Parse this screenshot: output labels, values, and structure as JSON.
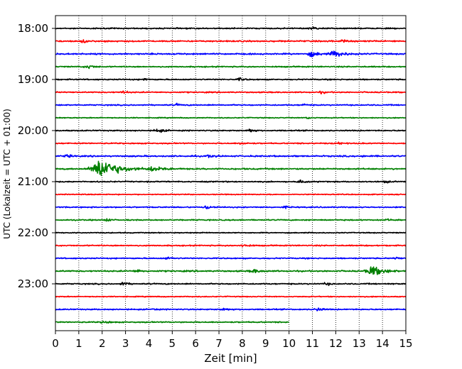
{
  "chart_data": {
    "type": "line",
    "title": "",
    "xlabel": "Zeit  [min]",
    "ylabel": "UTC (Lokalzeit = UTC + 01:00)",
    "xlim": [
      0,
      15
    ],
    "x_ticks": [
      "0",
      "1",
      "2",
      "3",
      "4",
      "5",
      "6",
      "7",
      "8",
      "9",
      "10",
      "11",
      "12",
      "13",
      "14",
      "15"
    ],
    "y_ticks": [
      "18:00",
      "19:00",
      "20:00",
      "21:00",
      "22:00",
      "23:00"
    ],
    "grid_x": true,
    "grid_style": "dotted",
    "trace_interval_minutes": 15,
    "trace_colors": [
      "#000000",
      "#ff0000",
      "#0000ff",
      "#008000"
    ],
    "traces": [
      {
        "start": "18:00",
        "color": "#000000",
        "amp": 0.25,
        "end_min": 15,
        "events": [
          {
            "t": 11.0,
            "amp": 0.5,
            "dur": 0.8
          }
        ]
      },
      {
        "start": "18:15",
        "color": "#ff0000",
        "amp": 0.3,
        "end_min": 15,
        "events": [
          {
            "t": 1.2,
            "amp": 0.6,
            "dur": 0.6
          },
          {
            "t": 12.3,
            "amp": 0.5,
            "dur": 0.5
          }
        ]
      },
      {
        "start": "18:30",
        "color": "#0000ff",
        "amp": 0.3,
        "end_min": 15,
        "events": [
          {
            "t": 11.0,
            "amp": 1.0,
            "dur": 1.0
          },
          {
            "t": 12.0,
            "amp": 1.3,
            "dur": 1.2
          }
        ]
      },
      {
        "start": "18:45",
        "color": "#008000",
        "amp": 0.25,
        "end_min": 15,
        "events": [
          {
            "t": 1.4,
            "amp": 0.9,
            "dur": 0.7
          }
        ]
      },
      {
        "start": "19:00",
        "color": "#000000",
        "amp": 0.25,
        "end_min": 15,
        "events": [
          {
            "t": 3.8,
            "amp": 0.5,
            "dur": 0.5
          },
          {
            "t": 7.9,
            "amp": 0.6,
            "dur": 0.6
          }
        ]
      },
      {
        "start": "19:15",
        "color": "#ff0000",
        "amp": 0.25,
        "end_min": 15,
        "events": [
          {
            "t": 2.9,
            "amp": 0.5,
            "dur": 0.6
          },
          {
            "t": 11.4,
            "amp": 0.5,
            "dur": 0.5
          }
        ]
      },
      {
        "start": "19:30",
        "color": "#0000ff",
        "amp": 0.25,
        "end_min": 15,
        "events": [
          {
            "t": 5.2,
            "amp": 0.4,
            "dur": 0.6
          },
          {
            "t": 10.6,
            "amp": 0.5,
            "dur": 0.5
          }
        ]
      },
      {
        "start": "19:45",
        "color": "#008000",
        "amp": 0.2,
        "end_min": 15,
        "events": [
          {
            "t": 10.8,
            "amp": 0.4,
            "dur": 0.5
          }
        ]
      },
      {
        "start": "20:00",
        "color": "#000000",
        "amp": 0.25,
        "end_min": 15,
        "events": [
          {
            "t": 4.4,
            "amp": 0.8,
            "dur": 0.8
          },
          {
            "t": 8.3,
            "amp": 0.8,
            "dur": 0.6
          }
        ]
      },
      {
        "start": "20:15",
        "color": "#ff0000",
        "amp": 0.25,
        "end_min": 15,
        "events": [
          {
            "t": 8.0,
            "amp": 0.5,
            "dur": 0.7
          },
          {
            "t": 12.1,
            "amp": 0.5,
            "dur": 0.5
          }
        ]
      },
      {
        "start": "20:30",
        "color": "#0000ff",
        "amp": 0.3,
        "end_min": 15,
        "events": [
          {
            "t": 0.5,
            "amp": 0.6,
            "dur": 0.5
          },
          {
            "t": 6.6,
            "amp": 0.6,
            "dur": 0.6
          },
          {
            "t": 13.2,
            "amp": 0.4,
            "dur": 0.4
          }
        ]
      },
      {
        "start": "20:45",
        "color": "#008000",
        "amp": 0.3,
        "end_min": 15,
        "events": [
          {
            "t": 2.0,
            "amp": 4.5,
            "dur": 2.2
          },
          {
            "t": 4.2,
            "amp": 1.1,
            "dur": 1.3
          }
        ]
      },
      {
        "start": "21:00",
        "color": "#000000",
        "amp": 0.25,
        "end_min": 15,
        "events": [
          {
            "t": 10.5,
            "amp": 0.7,
            "dur": 0.7
          },
          {
            "t": 14.1,
            "amp": 0.6,
            "dur": 0.5
          }
        ]
      },
      {
        "start": "21:15",
        "color": "#ff0000",
        "amp": 0.2,
        "end_min": 15,
        "events": []
      },
      {
        "start": "21:30",
        "color": "#0000ff",
        "amp": 0.25,
        "end_min": 15,
        "events": [
          {
            "t": 6.5,
            "amp": 0.6,
            "dur": 0.8
          },
          {
            "t": 9.8,
            "amp": 0.4,
            "dur": 0.5
          }
        ]
      },
      {
        "start": "21:45",
        "color": "#008000",
        "amp": 0.25,
        "end_min": 15,
        "events": [
          {
            "t": 2.2,
            "amp": 0.6,
            "dur": 0.5
          },
          {
            "t": 14.2,
            "amp": 0.5,
            "dur": 0.5
          }
        ]
      },
      {
        "start": "22:00",
        "color": "#000000",
        "amp": 0.2,
        "end_min": 15,
        "events": [
          {
            "t": 6.2,
            "amp": 0.6,
            "dur": 0.2
          }
        ]
      },
      {
        "start": "22:15",
        "color": "#ff0000",
        "amp": 0.25,
        "end_min": 15,
        "events": [
          {
            "t": 8.1,
            "amp": 0.6,
            "dur": 0.7
          }
        ]
      },
      {
        "start": "22:30",
        "color": "#0000ff",
        "amp": 0.25,
        "end_min": 15,
        "events": [
          {
            "t": 4.8,
            "amp": 0.5,
            "dur": 0.6
          },
          {
            "t": 14.6,
            "amp": 0.5,
            "dur": 0.5
          }
        ]
      },
      {
        "start": "22:45",
        "color": "#008000",
        "amp": 0.3,
        "end_min": 15,
        "events": [
          {
            "t": 3.5,
            "amp": 0.6,
            "dur": 0.7
          },
          {
            "t": 8.5,
            "amp": 0.7,
            "dur": 0.9
          },
          {
            "t": 13.6,
            "amp": 2.0,
            "dur": 1.4
          }
        ]
      },
      {
        "start": "23:00",
        "color": "#000000",
        "amp": 0.25,
        "end_min": 15,
        "events": [
          {
            "t": 2.9,
            "amp": 0.7,
            "dur": 0.6
          },
          {
            "t": 11.6,
            "amp": 0.5,
            "dur": 0.6
          }
        ]
      },
      {
        "start": "23:15",
        "color": "#ff0000",
        "amp": 0.2,
        "end_min": 15,
        "events": []
      },
      {
        "start": "23:30",
        "color": "#0000ff",
        "amp": 0.25,
        "end_min": 15,
        "events": [
          {
            "t": 4.2,
            "amp": 0.6,
            "dur": 0.3
          },
          {
            "t": 7.2,
            "amp": 0.6,
            "dur": 0.6
          },
          {
            "t": 11.2,
            "amp": 0.7,
            "dur": 0.7
          }
        ]
      },
      {
        "start": "23:45",
        "color": "#008000",
        "amp": 0.25,
        "end_min": 10,
        "events": [
          {
            "t": 2.1,
            "amp": 0.5,
            "dur": 0.7
          }
        ]
      }
    ]
  }
}
